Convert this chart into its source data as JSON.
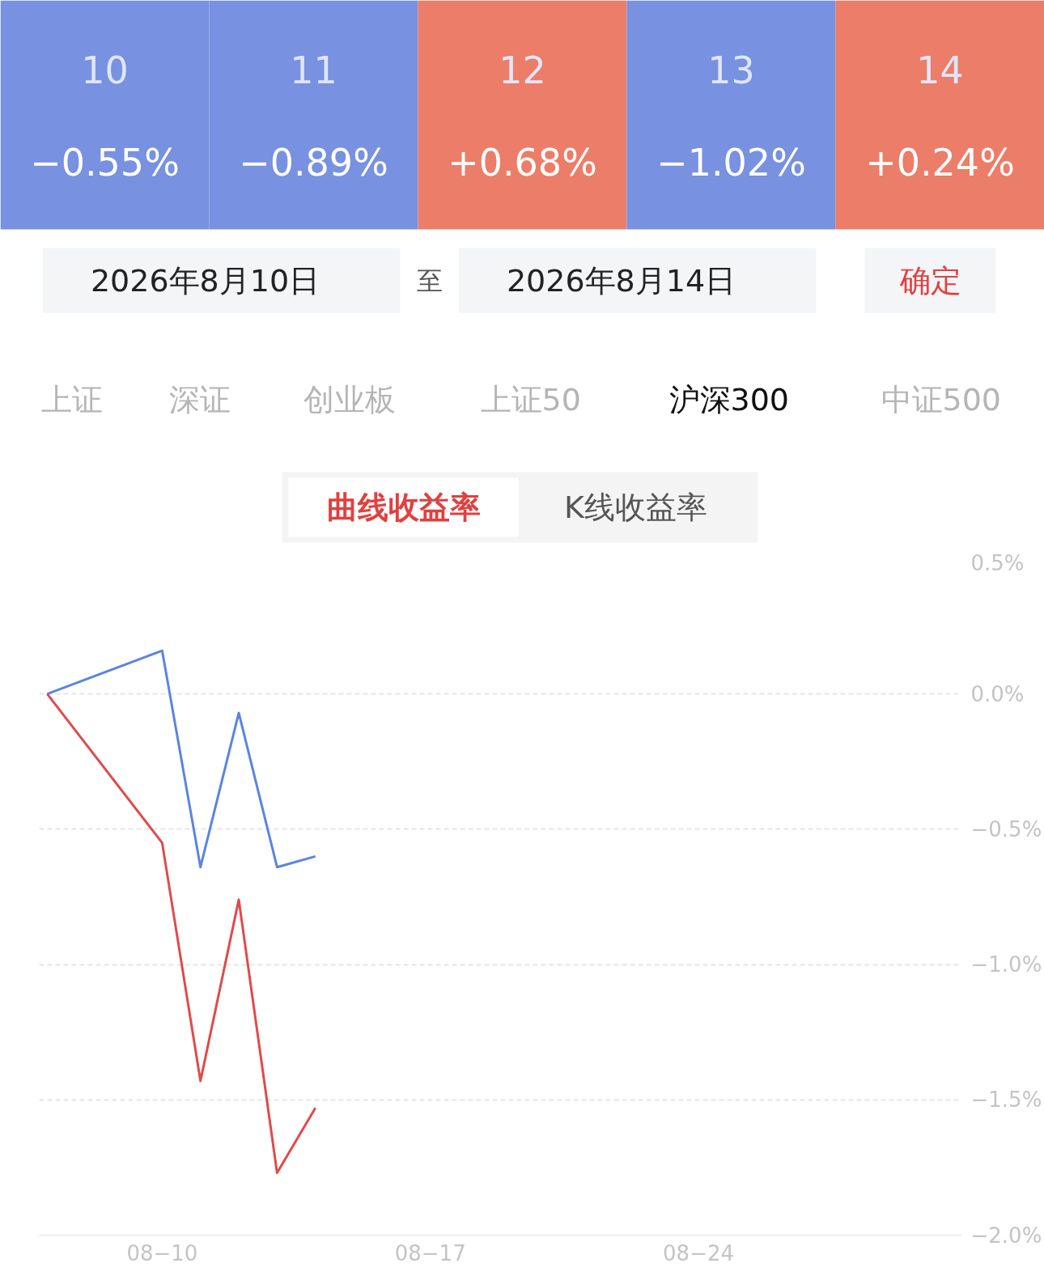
{
  "chart_data": [
    {
      "type": "heatmap",
      "categories": [
        "10",
        "11",
        "12",
        "13",
        "14"
      ],
      "y_categories": [
        null
      ],
      "cells": [
        [
          -0.55,
          -0.89,
          0.68,
          -1.02,
          0.24
        ]
      ],
      "cell_labels": [
        [
          "−0.55%",
          "−0.89%",
          "+0.68%",
          "−1.02%",
          "+0.24%"
        ]
      ],
      "colors": [
        "#7891e0",
        "#ec7d68"
      ],
      "annotations": [
        "2026年8月10日",
        "至",
        "2026年8月14日",
        "确定",
        "上证",
        "深证",
        "创业板",
        "上证50",
        "沪深300",
        "中证500",
        "曲线收益率",
        "K线收益率"
      ]
    },
    {
      "type": "line",
      "x": [
        "2026-08-07",
        "2026-08-10",
        "2026-08-11",
        "2026-08-12",
        "2026-08-13",
        "2026-08-14"
      ],
      "series": [
        {
          "color": "#5b84e0",
          "values": [
            0.0,
            0.16,
            -0.64,
            -0.07,
            -0.64,
            -0.6
          ]
        },
        {
          "color": "#e04a4a",
          "values": [
            0.0,
            -0.55,
            -1.43,
            -0.76,
            -1.77,
            -1.53
          ]
        }
      ],
      "xlim": [
        "2026-08-06T19:00",
        "2026-08-30T21:00"
      ],
      "ylim": [
        -2.0,
        0.5
      ],
      "xticks": [
        {
          "value": "2026-08-10",
          "label": "08−10"
        },
        {
          "value": "2026-08-17",
          "label": "08−17"
        },
        {
          "value": "2026-08-24",
          "label": "08−24"
        }
      ],
      "yticks": [
        {
          "value": 0.5,
          "label": "0.5%"
        },
        {
          "value": 0,
          "label": "0.0%"
        },
        {
          "value": -0.5,
          "label": "−0.5%"
        },
        {
          "value": -1.0,
          "label": "−1.0%"
        },
        {
          "value": -1.5,
          "label": "−1.5%"
        },
        {
          "value": -2.0,
          "label": "−2.0%"
        }
      ],
      "grid": "y",
      "marker": "none",
      "line_style": "solid"
    }
  ]
}
